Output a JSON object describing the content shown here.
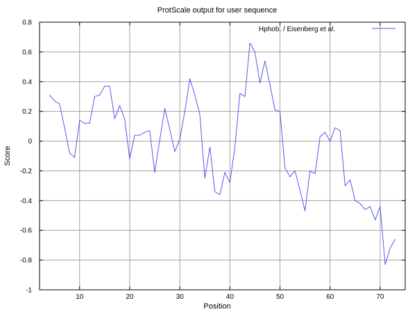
{
  "chart_data": {
    "type": "line",
    "title": "ProtScale output for user sequence",
    "xlabel": "Position",
    "ylabel": "Score",
    "xlim": [
      2,
      75
    ],
    "ylim": [
      -1,
      0.8
    ],
    "x_ticks": [
      10,
      20,
      30,
      40,
      50,
      60,
      70
    ],
    "y_ticks": [
      -1,
      -0.8,
      -0.6,
      -0.4,
      -0.2,
      0,
      0.2,
      0.4,
      0.6,
      0.8
    ],
    "x_tick_labels": [
      "10",
      "20",
      "30",
      "40",
      "50",
      "60",
      "70"
    ],
    "y_tick_labels": [
      "-1",
      "-0.8",
      "-0.6",
      "-0.4",
      "-0.2",
      "0",
      "0.2",
      "0.4",
      "0.6",
      "0.8"
    ],
    "grid": true,
    "legend_position": "top-right",
    "series": [
      {
        "name": "Hphob. / Eisenberg et al.",
        "color": "#5555ee",
        "x": [
          4,
          5,
          6,
          7,
          8,
          9,
          10,
          11,
          12,
          13,
          14,
          15,
          16,
          17,
          18,
          19,
          20,
          21,
          22,
          23,
          24,
          25,
          26,
          27,
          28,
          29,
          30,
          31,
          32,
          33,
          34,
          35,
          36,
          37,
          38,
          39,
          40,
          41,
          42,
          43,
          44,
          45,
          46,
          47,
          48,
          49,
          50,
          51,
          52,
          53,
          54,
          55,
          56,
          57,
          58,
          59,
          60,
          61,
          62,
          63,
          64,
          65,
          66,
          67,
          68,
          69,
          70,
          71,
          72,
          73
        ],
        "values": [
          0.31,
          0.27,
          0.25,
          0.09,
          -0.08,
          -0.11,
          0.14,
          0.12,
          0.12,
          0.3,
          0.31,
          0.37,
          0.37,
          0.15,
          0.24,
          0.15,
          -0.12,
          0.04,
          0.04,
          0.06,
          0.07,
          -0.21,
          0.01,
          0.22,
          0.08,
          -0.07,
          0.01,
          0.2,
          0.42,
          0.31,
          0.18,
          -0.25,
          -0.04,
          -0.34,
          -0.36,
          -0.21,
          -0.28,
          -0.04,
          0.32,
          0.3,
          0.66,
          0.6,
          0.39,
          0.54,
          0.38,
          0.21,
          0.2,
          -0.18,
          -0.24,
          -0.2,
          -0.33,
          -0.47,
          -0.2,
          -0.22,
          0.03,
          0.06,
          0.0,
          0.09,
          0.07,
          -0.3,
          -0.26,
          -0.4,
          -0.42,
          -0.46,
          -0.44,
          -0.53,
          -0.44,
          -0.83,
          -0.72,
          -0.66
        ]
      }
    ]
  }
}
